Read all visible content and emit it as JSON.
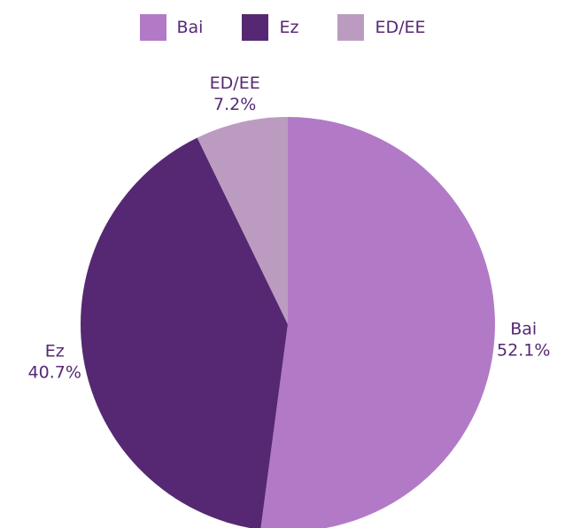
{
  "chart_data": {
    "type": "pie",
    "categories": [
      "Bai",
      "Ez",
      "ED/EE"
    ],
    "values": [
      52.1,
      40.7,
      7.2
    ],
    "value_labels": [
      "52.1%",
      "40.7%",
      "7.2%"
    ],
    "colors": [
      "#b27ac6",
      "#562873",
      "#bb9cc0"
    ],
    "legend": {
      "position": "top",
      "entries": [
        "Bai",
        "Ez",
        "ED/EE"
      ]
    },
    "start": "12 o'clock",
    "direction": "clockwise"
  }
}
